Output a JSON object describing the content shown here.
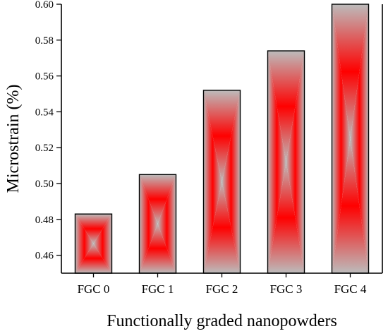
{
  "chart_data": {
    "type": "bar",
    "categories": [
      "FGC 0",
      "FGC 1",
      "FGC 2",
      "FGC 3",
      "FGC 4"
    ],
    "values": [
      0.483,
      0.505,
      0.552,
      0.574,
      0.6
    ],
    "xlabel": "Functionally graded nanopowders",
    "ylabel": "Microstrain (%)",
    "ylim": [
      0.45,
      0.6
    ],
    "yticks": [
      "0.46",
      "0.48",
      "0.50",
      "0.52",
      "0.54",
      "0.56",
      "0.58",
      "0.60"
    ],
    "grid": false,
    "bar_colors": {
      "edge": "#bcbcbc",
      "center": "#ff0000",
      "outline": "#000000"
    }
  }
}
